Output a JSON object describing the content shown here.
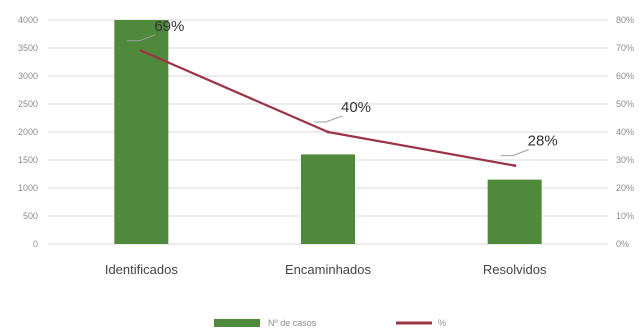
{
  "chart_data": {
    "type": "bar",
    "categories": [
      "Identificados",
      "Encaminhados",
      "Resolvidos"
    ],
    "series": [
      {
        "name": "Nº de casos",
        "kind": "bar",
        "axis": "left",
        "values": [
          4000,
          1600,
          1150
        ],
        "color": "#4f8a3c"
      },
      {
        "name": "%",
        "kind": "line",
        "axis": "right",
        "values": [
          69,
          40,
          28
        ],
        "color": "#9c3346",
        "data_labels": [
          "69%",
          "40%",
          "28%"
        ]
      }
    ],
    "y_left": {
      "min": 0,
      "max": 4000,
      "ticks": [
        0,
        500,
        1000,
        1500,
        2000,
        2500,
        3000,
        3500,
        4000
      ],
      "tick_labels": [
        "0",
        "500",
        "1000",
        "1500",
        "2000",
        "2500",
        "3000",
        "3500",
        "4000"
      ]
    },
    "y_right": {
      "min": 0,
      "max": 80,
      "ticks": [
        0,
        10,
        20,
        30,
        40,
        50,
        60,
        70,
        80
      ],
      "tick_labels": [
        "0%",
        "10%",
        "20%",
        "30%",
        "40%",
        "50%",
        "60%",
        "70%",
        "80%"
      ]
    },
    "title": "",
    "xlabel": "",
    "ylabel": "",
    "grid": true,
    "legend": {
      "position": "bottom",
      "labels": [
        "Nº de casos",
        "%"
      ]
    },
    "colors": {
      "bar": "#4f8a3c",
      "line": "#9c3346",
      "grid": "#d9d9d9",
      "axis_text": "#8c8c8c",
      "category_text": "#444444",
      "label_text": "#333333"
    }
  }
}
